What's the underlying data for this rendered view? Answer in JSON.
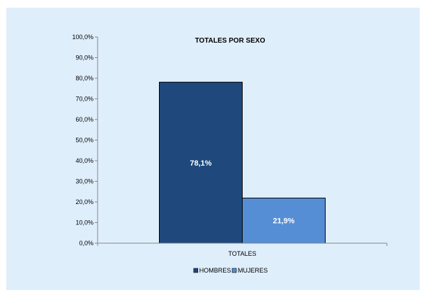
{
  "chart_data": {
    "type": "bar",
    "title": "TOTALES POR SEXO",
    "categories": [
      "TOTALES"
    ],
    "series": [
      {
        "name": "HOMBRES",
        "values": [
          78.1
        ],
        "label": "78,1%",
        "color": "#1f497d"
      },
      {
        "name": "MUJERES",
        "values": [
          21.9
        ],
        "label": "21,9%",
        "color": "#558ed5"
      }
    ],
    "ylim": [
      0,
      100
    ],
    "yticks": [
      {
        "value": 0,
        "label": "0,0%"
      },
      {
        "value": 10,
        "label": "10,0%"
      },
      {
        "value": 20,
        "label": "20,0%"
      },
      {
        "value": 30,
        "label": "30,0%"
      },
      {
        "value": 40,
        "label": "40,0%"
      },
      {
        "value": 50,
        "label": "50,0%"
      },
      {
        "value": 60,
        "label": "60,0%"
      },
      {
        "value": 70,
        "label": "70,0%"
      },
      {
        "value": 80,
        "label": "80,0%"
      },
      {
        "value": 90,
        "label": "90,0%"
      },
      {
        "value": 100,
        "label": "100,0%"
      }
    ],
    "grid": false,
    "legend": "bottom-center",
    "background": "#dfeefb",
    "bar_border": "#000000"
  }
}
